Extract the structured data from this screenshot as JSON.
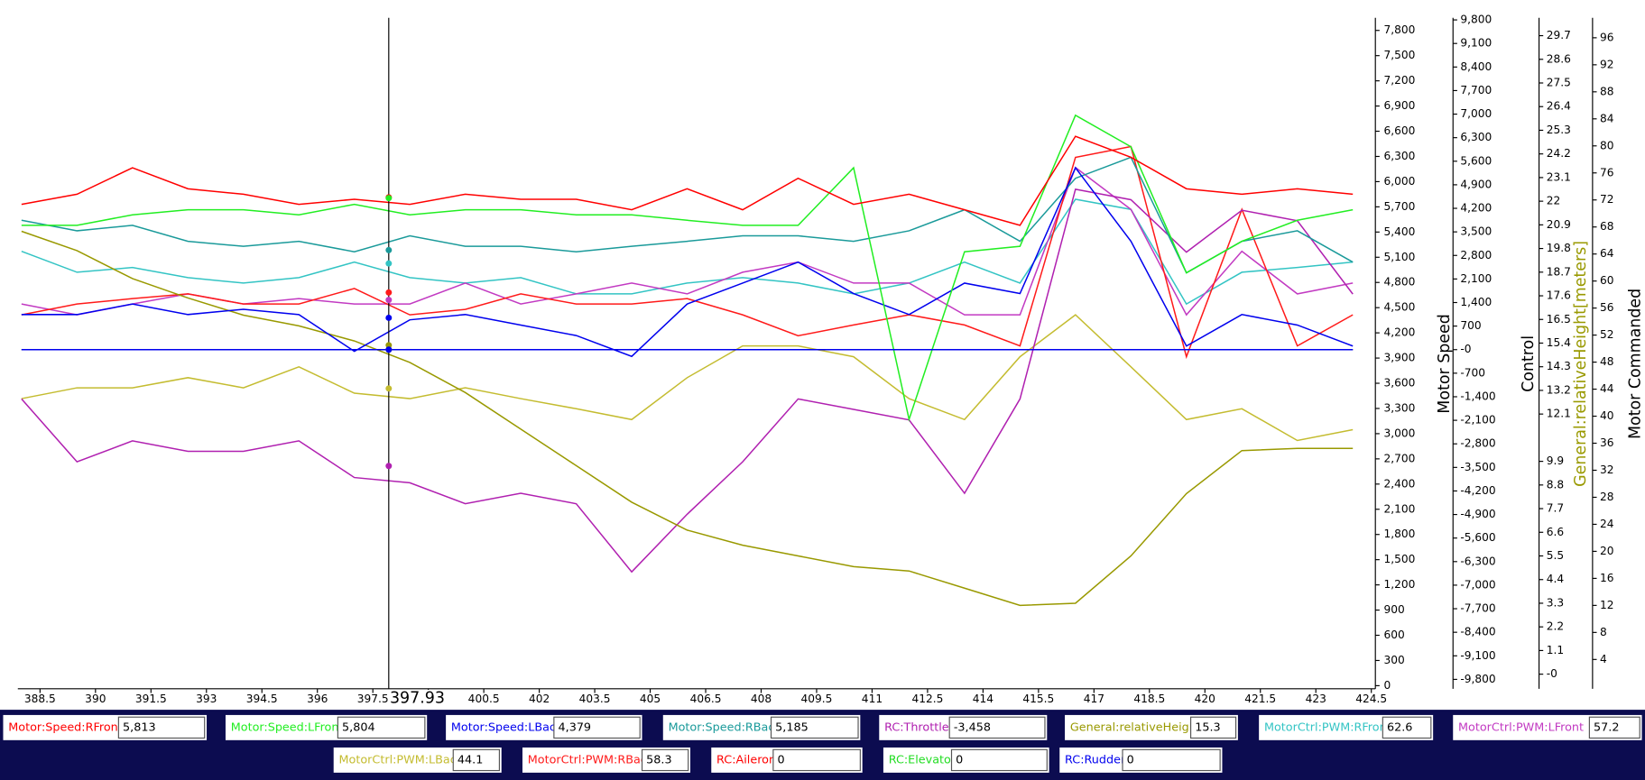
{
  "chart_data": {
    "type": "line",
    "legend": "bottom",
    "cursor_x": 397.93,
    "x": [
      388,
      389.5,
      391,
      392.5,
      394,
      395.5,
      397,
      398.5,
      400,
      401.5,
      403,
      404.5,
      406,
      407.5,
      409,
      410.5,
      412,
      413.5,
      415,
      416.5,
      418,
      419.5,
      421,
      422.5,
      424
    ],
    "xlim": [
      387.9,
      424.61
    ],
    "xticks": [
      388.5,
      390,
      391.5,
      393,
      394.5,
      396,
      397.5,
      399,
      400.5,
      402,
      403.5,
      405,
      406.5,
      408,
      409.5,
      411,
      412.5,
      414,
      415.5,
      417,
      418.5,
      420,
      421.5,
      423,
      424.5
    ],
    "ylabel": "Motor Speed",
    "ylim": [
      -37,
      7950
    ],
    "yticks": [
      0,
      300,
      600,
      900,
      {
        "value": 1200,
        "label": "1,200"
      },
      {
        "value": 1500,
        "label": "1,500"
      },
      {
        "value": 1800,
        "label": "1,800"
      },
      {
        "value": 2100,
        "label": "2,100"
      },
      {
        "value": 2400,
        "label": "2,400"
      },
      {
        "value": 2700,
        "label": "2,700"
      },
      {
        "value": 3000,
        "label": "3,000"
      },
      {
        "value": 3300,
        "label": "3,300"
      },
      {
        "value": 3600,
        "label": "3,600"
      },
      {
        "value": 3900,
        "label": "3,900"
      },
      {
        "value": 4200,
        "label": "4,200"
      },
      {
        "value": 4500,
        "label": "4,500"
      },
      {
        "value": 4800,
        "label": "4,800"
      },
      {
        "value": 5100,
        "label": "5,100"
      },
      {
        "value": 5400,
        "label": "5,400"
      },
      {
        "value": 5700,
        "label": "5,700"
      },
      {
        "value": 6000,
        "label": "6,000"
      },
      {
        "value": 6300,
        "label": "6,300"
      },
      {
        "value": 6600,
        "label": "6,600"
      },
      {
        "value": 6900,
        "label": "6,900"
      },
      {
        "value": 7200,
        "label": "7,200"
      },
      {
        "value": 7500,
        "label": "7,500"
      },
      {
        "value": 7800,
        "label": "7,800"
      }
    ],
    "y2label": "Control",
    "y2lim": [
      -10080,
      9862
    ],
    "y2ticks": [
      {
        "value": -9800,
        "label": "-9,800"
      },
      {
        "value": -9100,
        "label": "-9,100"
      },
      {
        "value": -8400,
        "label": "-8,400"
      },
      {
        "value": -7700,
        "label": "-7,700"
      },
      {
        "value": -7000,
        "label": "-7,000"
      },
      {
        "value": -6300,
        "label": "-6,300"
      },
      {
        "value": -5600,
        "label": "-5,600"
      },
      {
        "value": -4900,
        "label": "-4,900"
      },
      {
        "value": -4200,
        "label": "-4,200"
      },
      {
        "value": -3500,
        "label": "-3,500"
      },
      {
        "value": -2800,
        "label": "-2,800"
      },
      {
        "value": -2100,
        "label": "-2,100"
      },
      {
        "value": -1400,
        "label": "-1,400"
      },
      -700,
      {
        "value": 0,
        "label": "-0"
      },
      700,
      {
        "value": 1400,
        "label": "1,400"
      },
      {
        "value": 2100,
        "label": "2,100"
      },
      {
        "value": 2800,
        "label": "2,800"
      },
      {
        "value": 3500,
        "label": "3,500"
      },
      {
        "value": 4200,
        "label": "4,200"
      },
      {
        "value": 4900,
        "label": "4,900"
      },
      {
        "value": 5600,
        "label": "5,600"
      },
      {
        "value": 6300,
        "label": "6,300"
      },
      {
        "value": 7000,
        "label": "7,000"
      },
      {
        "value": 7700,
        "label": "7,700"
      },
      {
        "value": 8400,
        "label": "8,400"
      },
      {
        "value": 9100,
        "label": "9,100"
      },
      {
        "value": 9800,
        "label": "9,800"
      }
    ],
    "y3label": "General:relativeHeight[meters]",
    "y3label_color": "#999900",
    "y3lim": [
      -0.68,
      30.53
    ],
    "y3ticks": [
      {
        "value": 0,
        "label": "-0"
      },
      1.1,
      2.2,
      3.3,
      4.4,
      5.5,
      6.6,
      7.7,
      8.8,
      9.9,
      12.1,
      13.2,
      14.3,
      15.4,
      16.5,
      17.6,
      18.7,
      19.8,
      20.9,
      22,
      23.1,
      24.2,
      25.3,
      26.4,
      27.5,
      28.6,
      29.7
    ],
    "y4label": "Motor Commanded",
    "y4lim": [
      -0.34,
      98.95
    ],
    "y4ticks": [
      4,
      8,
      12,
      16,
      20,
      24,
      28,
      32,
      36,
      40,
      44,
      48,
      52,
      56,
      60,
      64,
      68,
      72,
      76,
      80,
      84,
      88,
      92,
      96
    ],
    "series": [
      {
        "name": "Motor:Speed:RFront",
        "color": "#ff0000",
        "axis": "y",
        "cursor_value": 5813,
        "cursor_value_label": "5,813",
        "values": [
          5730,
          5850,
          6165,
          5915,
          5850,
          5730,
          5790,
          5730,
          5850,
          5790,
          5790,
          5665,
          5915,
          5665,
          6040,
          5730,
          5850,
          5665,
          5480,
          6540,
          6290,
          5915,
          5850,
          5915,
          5850
        ]
      },
      {
        "name": "Motor:Speed:LFront",
        "color": "#22ee22",
        "axis": "y",
        "cursor_value": 5804,
        "cursor_value_label": "5,804",
        "values": [
          5480,
          5480,
          5605,
          5665,
          5665,
          5605,
          5730,
          5605,
          5665,
          5665,
          5605,
          5605,
          5540,
          5480,
          5480,
          6165,
          3170,
          5165,
          5230,
          6790,
          6415,
          4915,
          5290,
          5540,
          5665
        ]
      },
      {
        "name": "Motor:Speed:LBack",
        "color": "#0000ee",
        "axis": "y",
        "cursor_value": 4379,
        "cursor_value_label": "4,379",
        "values": [
          4418,
          4418,
          4543,
          4418,
          4480,
          4418,
          3980,
          4355,
          4418,
          4293,
          4168,
          3920,
          4543,
          4792,
          5042,
          4668,
          4418,
          4792,
          4668,
          6165,
          5290,
          4043,
          4418,
          4293,
          4043
        ]
      },
      {
        "name": "Motor:Speed:RBack",
        "color": "#1a9a9a",
        "axis": "y",
        "cursor_value": 5185,
        "cursor_value_label": "5,185",
        "values": [
          5540,
          5415,
          5480,
          5290,
          5230,
          5290,
          5165,
          5355,
          5230,
          5230,
          5165,
          5230,
          5290,
          5355,
          5355,
          5290,
          5415,
          5665,
          5290,
          6040,
          6290,
          4915,
          5290,
          5415,
          5042
        ]
      },
      {
        "name": "RC:Throttle",
        "color": "#b020b0",
        "axis": "y2",
        "cursor_value": -3458,
        "cursor_value_label": "-3,458",
        "values": [
          -1465,
          -3334,
          -2711,
          -3023,
          -3023,
          -2711,
          -3801,
          -3957,
          -4580,
          -4269,
          -4580,
          -6605,
          -4892,
          -3334,
          -1465,
          -1776,
          -2088,
          -4269,
          -1465,
          4768,
          4456,
          2898,
          4144,
          3832,
          1651
        ]
      },
      {
        "name": "General:relativeHeight",
        "color": "#999900",
        "axis": "y3",
        "cursor_value": 15.3,
        "values": [
          20.6,
          19.7,
          18.4,
          17.5,
          16.7,
          16.2,
          15.5,
          14.5,
          13.1,
          11.4,
          9.7,
          8.0,
          6.7,
          6.0,
          5.5,
          5.0,
          4.8,
          4.0,
          3.2,
          3.3,
          5.5,
          8.4,
          10.4,
          10.5,
          10.5
        ]
      },
      {
        "name": "MotorCtrl:PWM:RFront",
        "color": "#33c4c4",
        "axis": "y4",
        "cursor_value": 62.6,
        "values": [
          64.4,
          61.3,
          62.0,
          60.5,
          59.7,
          60.5,
          62.8,
          60.5,
          59.7,
          60.5,
          58.1,
          58.1,
          59.7,
          60.5,
          59.7,
          58.1,
          59.7,
          62.8,
          59.7,
          72.1,
          70.6,
          56.6,
          61.3,
          62.0,
          62.8
        ]
      },
      {
        "name": "MotorCtrl:PWM:LFront",
        "color": "#c23ac2",
        "axis": "y4",
        "cursor_value": 57.2,
        "values": [
          56.6,
          55.0,
          56.6,
          58.1,
          56.6,
          57.4,
          56.6,
          56.6,
          59.7,
          56.6,
          58.1,
          59.7,
          58.1,
          61.3,
          62.8,
          59.7,
          59.7,
          55.0,
          55.0,
          76.8,
          70.6,
          55.0,
          64.4,
          58.1,
          59.7
        ]
      },
      {
        "name": "MotorCtrl:PWM:LBack",
        "color": "#c4bc30",
        "axis": "y4",
        "cursor_value": 44.1,
        "values": [
          42.6,
          44.2,
          44.2,
          45.7,
          44.2,
          47.3,
          43.4,
          42.6,
          44.2,
          42.6,
          41.1,
          39.5,
          45.7,
          50.4,
          50.4,
          48.8,
          42.6,
          39.5,
          48.8,
          55.0,
          47.3,
          39.5,
          41.1,
          36.4,
          38.0
        ]
      },
      {
        "name": "MotorCtrl:PWM:RBack",
        "color": "#ff1a1a",
        "axis": "y4",
        "cursor_value": 58.3,
        "values": [
          55.0,
          56.6,
          57.4,
          58.1,
          56.6,
          56.6,
          58.9,
          55.0,
          55.8,
          58.1,
          56.6,
          56.6,
          57.4,
          55.0,
          51.9,
          53.5,
          55.0,
          53.5,
          50.4,
          78.3,
          79.9,
          48.8,
          70.6,
          50.4,
          55.0
        ]
      },
      {
        "name": "RC:Aileron",
        "color": "#ff0000",
        "axis": "y2",
        "cursor_value": 0,
        "values": [
          0,
          0,
          0,
          0,
          0,
          0,
          0,
          0,
          0,
          0,
          0,
          0,
          0,
          0,
          0,
          0,
          0,
          0,
          0,
          0,
          0,
          0,
          0,
          0,
          0
        ]
      },
      {
        "name": "RC:Elevator",
        "color": "#22dd22",
        "axis": "y2",
        "cursor_value": 0,
        "values": [
          0,
          0,
          0,
          0,
          0,
          0,
          0,
          0,
          0,
          0,
          0,
          0,
          0,
          0,
          0,
          0,
          0,
          0,
          0,
          0,
          0,
          0,
          0,
          0,
          0
        ]
      },
      {
        "name": "RC:Rudder",
        "color": "#0000ee",
        "axis": "y2",
        "cursor_value": 0,
        "values": [
          0,
          0,
          0,
          0,
          0,
          0,
          0,
          0,
          0,
          0,
          0,
          0,
          0,
          0,
          0,
          0,
          0,
          0,
          0,
          0,
          0,
          0,
          0,
          0,
          0
        ]
      }
    ]
  }
}
